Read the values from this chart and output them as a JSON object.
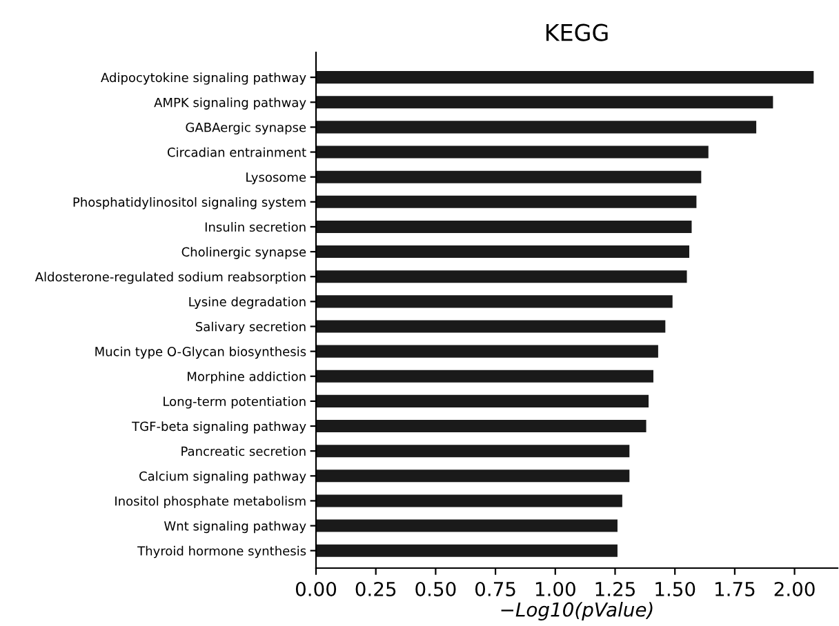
{
  "chart_data": {
    "type": "bar",
    "orientation": "horizontal",
    "title": "KEGG",
    "xlabel": "−Log10(pValue)",
    "categories": [
      "Adipocytokine signaling pathway",
      "AMPK signaling pathway",
      "GABAergic synapse",
      "Circadian entrainment",
      "Lysosome",
      "Phosphatidylinositol signaling system",
      "Insulin secretion",
      "Cholinergic synapse",
      "Aldosterone-regulated sodium reabsorption",
      "Lysine degradation",
      "Salivary secretion",
      "Mucin type O-Glycan biosynthesis",
      "Morphine addiction",
      "Long-term potentiation",
      "TGF-beta signaling pathway",
      "Pancreatic secretion",
      "Calcium signaling pathway",
      "Inositol phosphate metabolism",
      "Wnt signaling pathway",
      "Thyroid hormone synthesis"
    ],
    "values": [
      2.08,
      1.91,
      1.84,
      1.64,
      1.61,
      1.59,
      1.57,
      1.56,
      1.55,
      1.49,
      1.46,
      1.43,
      1.41,
      1.39,
      1.38,
      1.31,
      1.31,
      1.28,
      1.26,
      1.26
    ],
    "color": "#1a1a1a",
    "xlim": [
      0,
      2.18
    ],
    "xticks": [
      {
        "value": 0,
        "label": "0.00"
      },
      {
        "value": 0.25,
        "label": "0.25"
      },
      {
        "value": 0.5,
        "label": "0.50"
      },
      {
        "value": 0.75,
        "label": "0.75"
      },
      {
        "value": 1,
        "label": "1.00"
      },
      {
        "value": 1.25,
        "label": "1.25"
      },
      {
        "value": 1.5,
        "label": "1.50"
      },
      {
        "value": 1.75,
        "label": "1.75"
      },
      {
        "value": 2,
        "label": "2.00"
      }
    ],
    "grid": false,
    "legend": false
  }
}
